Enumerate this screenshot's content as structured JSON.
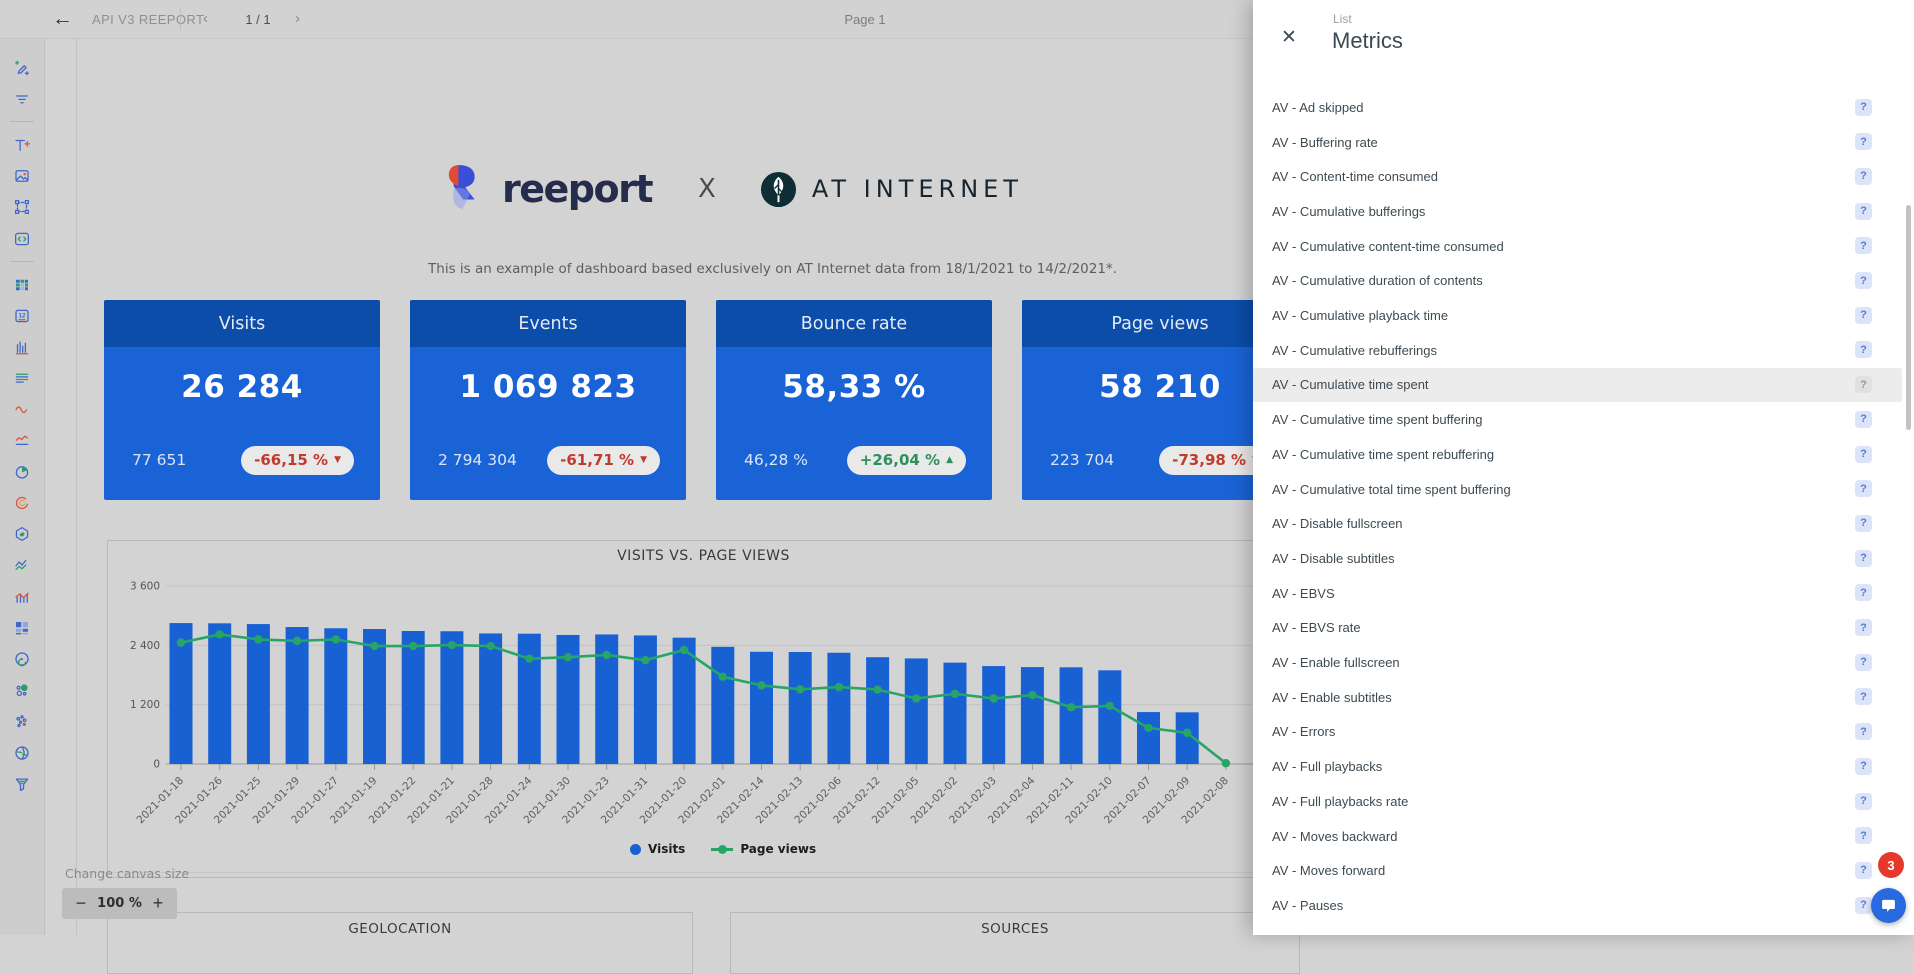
{
  "topbar": {
    "title": "API V3 REEPORT",
    "page_indicator": "1 / 1",
    "page_label": "Page 1"
  },
  "icons": {
    "back": "←",
    "prev": "‹",
    "next": "›",
    "close": "✕",
    "help": "?",
    "minus": "−",
    "plus": "+"
  },
  "sidebar": {
    "icons": [
      "magic-pen-add",
      "filter-lines",
      "divider",
      "add-text",
      "insert-image",
      "selection-frame",
      "embed-code",
      "divider",
      "data-table",
      "calendar-number",
      "bar-chart",
      "aligned-lines",
      "wave-curve",
      "wave-underline",
      "pie-chart",
      "donut-arc",
      "hexagon-shape",
      "zigzag-lines",
      "mixed-chart",
      "grid-squares",
      "radar-rings",
      "bubble-chart",
      "scatter-plot",
      "globe",
      "funnel"
    ]
  },
  "canvas": {
    "logos": {
      "brand": "reeport",
      "separator": "X",
      "partner": "AT INTERNET"
    },
    "tagline": "This is an example of dashboard based exclusively on AT Internet data from 18/1/2021 to 14/2/2021*.",
    "kpis": [
      {
        "title": "Visits",
        "value": "26 284",
        "previous": "77 651",
        "delta": "-66,15 %",
        "arrow": "▼",
        "direction": "down"
      },
      {
        "title": "Events",
        "value": "1 069 823",
        "previous": "2 794 304",
        "delta": "-61,71 %",
        "arrow": "▼",
        "direction": "down"
      },
      {
        "title": "Bounce rate",
        "value": "58,33 %",
        "previous": "46,28 %",
        "delta": "+26,04 %",
        "arrow": "▲",
        "direction": "up"
      },
      {
        "title": "Page views",
        "value": "58 210",
        "previous": "223 704",
        "delta": "-73,98 %",
        "arrow": "▼",
        "direction": "down"
      }
    ],
    "sections": {
      "geolocation": "GEOLOCATION",
      "sources": "SOURCES"
    },
    "canvas_size_label": "Change canvas size",
    "zoom_level": "100 %"
  },
  "chart_data": {
    "type": "bar+line",
    "title": "VISITS VS. PAGE VIEWS",
    "x": [
      "2021-01-18",
      "2021-01-26",
      "2021-01-25",
      "2021-01-29",
      "2021-01-27",
      "2021-01-19",
      "2021-01-22",
      "2021-01-21",
      "2021-01-28",
      "2021-01-24",
      "2021-01-30",
      "2021-01-23",
      "2021-01-31",
      "2021-01-20",
      "2021-02-01",
      "2021-02-14",
      "2021-02-13",
      "2021-02-06",
      "2021-02-12",
      "2021-02-05",
      "2021-02-02",
      "2021-02-03",
      "2021-02-04",
      "2021-02-11",
      "2021-02-10",
      "2021-02-07",
      "2021-02-09",
      "2021-02-08"
    ],
    "series": [
      {
        "name": "Visits",
        "type": "bar",
        "color": "#1761d3",
        "values": [
          2850,
          2845,
          2830,
          2770,
          2745,
          2730,
          2690,
          2685,
          2640,
          2635,
          2610,
          2620,
          2600,
          2555,
          2370,
          2270,
          2265,
          2250,
          2160,
          2135,
          2050,
          1980,
          1960,
          1955,
          1895,
          1050,
          1045,
          0
        ]
      },
      {
        "name": "Page views",
        "type": "line",
        "color": "#26a567",
        "values": [
          2455,
          2620,
          2520,
          2490,
          2520,
          2385,
          2385,
          2405,
          2385,
          2130,
          2160,
          2205,
          2100,
          2305,
          1765,
          1590,
          1510,
          1555,
          1505,
          1325,
          1420,
          1325,
          1395,
          1150,
          1175,
          730,
          630,
          15
        ]
      }
    ],
    "ylim": [
      0,
      3600
    ],
    "yticks": [
      0,
      1200,
      2400,
      3600
    ],
    "ytick_labels": [
      "0",
      "1 200",
      "2 400",
      "3 600"
    ],
    "grid": true,
    "legend_position": "bottom"
  },
  "panel": {
    "kicker": "List",
    "title": "Metrics",
    "selected_index": 8,
    "items": [
      "AV - Ad skipped",
      "AV - Buffering rate",
      "AV - Content-time consumed",
      "AV - Cumulative bufferings",
      "AV - Cumulative content-time consumed",
      "AV - Cumulative duration of contents",
      "AV - Cumulative playback time",
      "AV - Cumulative rebufferings",
      "AV - Cumulative time spent",
      "AV - Cumulative time spent buffering",
      "AV - Cumulative time spent rebuffering",
      "AV - Cumulative total time spent buffering",
      "AV - Disable fullscreen",
      "AV - Disable subtitles",
      "AV - EBVS",
      "AV - EBVS rate",
      "AV - Enable fullscreen",
      "AV - Enable subtitles",
      "AV - Errors",
      "AV - Full playbacks",
      "AV - Full playbacks rate",
      "AV - Moves backward",
      "AV - Moves forward",
      "AV - Pauses"
    ]
  },
  "intercom": {
    "badge_count": "3"
  },
  "colors": {
    "kpi_header": "#0b4da8",
    "kpi_body": "#1a63d6",
    "bar_blue": "#1761d3",
    "line_green": "#26a567",
    "delta_down": "#c13a2c",
    "delta_up": "#2e8f5b",
    "badge_red": "#e6392c",
    "chat_blue": "#2a6ae0"
  }
}
